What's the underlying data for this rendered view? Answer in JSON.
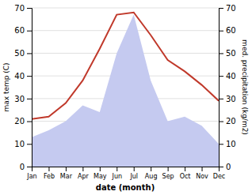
{
  "chart_data": {
    "type": "line",
    "xlabel": "date (month)",
    "ylabel": "max temp (C)",
    "y2label": "med. precipitation (kg/m2)",
    "categories": [
      "Jan",
      "Feb",
      "Mar",
      "Apr",
      "May",
      "Jun",
      "Jul",
      "Aug",
      "Sep",
      "Oct",
      "Nov",
      "Dec"
    ],
    "series": [
      {
        "type": "area",
        "axis": "y2",
        "color": "#c5caf0",
        "values": [
          13,
          16,
          20,
          27,
          24,
          50,
          67,
          38,
          20,
          22,
          18,
          10
        ]
      },
      {
        "type": "line",
        "color": "#c0392b",
        "values": [
          21,
          22,
          28,
          38,
          52,
          67,
          68,
          58,
          47,
          42,
          36,
          29
        ]
      }
    ],
    "ylim": [
      0,
      70
    ],
    "yticks": [
      0,
      10,
      20,
      30,
      40,
      50,
      60,
      70
    ],
    "y2lim": [
      0,
      70
    ],
    "y2ticks": [
      0,
      10,
      20,
      30,
      40,
      50,
      60,
      70
    ],
    "grid": true
  }
}
